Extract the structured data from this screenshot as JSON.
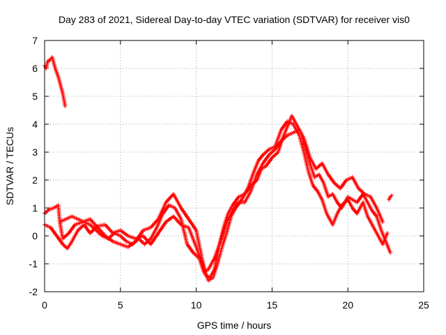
{
  "chart_data": {
    "type": "line",
    "title": "Day 283 of 2021, Sidereal Day-to-day VTEC variation (SDTVAR) for receiver vis0",
    "xlabel": "GPS time / hours",
    "ylabel": "SDTVAR / TECUs",
    "xlim": [
      0,
      25
    ],
    "ylim": [
      -2,
      7
    ],
    "xticks": [
      0,
      5,
      10,
      15,
      20,
      25
    ],
    "yticks": [
      -2,
      -1,
      0,
      1,
      2,
      3,
      4,
      5,
      6,
      7
    ],
    "grid": true,
    "marker": "+",
    "color": "#ff0000",
    "series": [
      {
        "name": "segment-early",
        "points": [
          [
            0.0,
            6.1
          ],
          [
            0.1,
            6.0
          ],
          [
            0.2,
            6.25
          ],
          [
            0.35,
            6.3
          ],
          [
            0.5,
            6.4
          ],
          [
            0.6,
            6.2
          ],
          [
            0.7,
            6.0
          ],
          [
            0.8,
            5.85
          ],
          [
            0.9,
            5.7
          ],
          [
            1.0,
            5.5
          ],
          [
            1.1,
            5.3
          ],
          [
            1.2,
            5.1
          ],
          [
            1.3,
            4.8
          ],
          [
            1.35,
            4.65
          ]
        ]
      },
      {
        "name": "track-a",
        "points": [
          [
            0.0,
            0.8
          ],
          [
            0.3,
            0.95
          ],
          [
            0.6,
            1.0
          ],
          [
            0.9,
            1.1
          ],
          [
            1.0,
            0.5
          ],
          [
            1.2,
            -0.1
          ],
          [
            1.6,
            0.1
          ],
          [
            2.0,
            0.4
          ],
          [
            2.5,
            0.5
          ],
          [
            3.0,
            0.6
          ],
          [
            3.5,
            0.3
          ],
          [
            4.0,
            0.0
          ],
          [
            4.5,
            -0.2
          ],
          [
            5.0,
            -0.3
          ],
          [
            5.5,
            -0.4
          ],
          [
            6.0,
            -0.2
          ],
          [
            6.5,
            0.2
          ],
          [
            7.0,
            0.3
          ],
          [
            7.5,
            0.6
          ],
          [
            8.0,
            1.2
          ],
          [
            8.5,
            1.5
          ],
          [
            9.0,
            1.0
          ],
          [
            9.5,
            0.6
          ],
          [
            10.0,
            0.2
          ],
          [
            10.3,
            -0.6
          ],
          [
            10.6,
            -1.4
          ],
          [
            10.9,
            -1.5
          ],
          [
            11.2,
            -1.2
          ],
          [
            11.5,
            -0.4
          ],
          [
            11.8,
            0.3
          ],
          [
            12.1,
            0.8
          ],
          [
            12.4,
            1.1
          ],
          [
            12.8,
            1.4
          ],
          [
            13.2,
            1.5
          ],
          [
            13.6,
            1.8
          ],
          [
            14.0,
            2.0
          ],
          [
            14.3,
            2.4
          ],
          [
            14.6,
            2.5
          ],
          [
            15.0,
            2.8
          ],
          [
            15.4,
            3.0
          ],
          [
            15.7,
            3.5
          ],
          [
            16.0,
            3.9
          ],
          [
            16.3,
            4.3
          ],
          [
            16.6,
            4.0
          ],
          [
            16.9,
            3.7
          ],
          [
            17.2,
            3.2
          ],
          [
            17.5,
            2.6
          ],
          [
            17.8,
            2.1
          ],
          [
            18.1,
            2.2
          ],
          [
            18.4,
            1.9
          ],
          [
            18.7,
            1.4
          ],
          [
            19.0,
            1.5
          ],
          [
            19.3,
            1.2
          ],
          [
            19.6,
            1.0
          ],
          [
            20.0,
            1.4
          ],
          [
            20.3,
            1.3
          ],
          [
            20.6,
            1.2
          ],
          [
            21.0,
            1.5
          ],
          [
            21.3,
            1.2
          ],
          [
            21.6,
            0.9
          ],
          [
            21.9,
            0.7
          ],
          [
            22.2,
            0.2
          ],
          [
            22.5,
            -0.2
          ],
          [
            22.8,
            -0.6
          ]
        ]
      },
      {
        "name": "track-b",
        "points": [
          [
            0.0,
            0.4
          ],
          [
            0.4,
            0.3
          ],
          [
            0.8,
            0.0
          ],
          [
            1.2,
            -0.3
          ],
          [
            1.5,
            -0.45
          ],
          [
            1.8,
            -0.2
          ],
          [
            2.2,
            0.2
          ],
          [
            2.6,
            0.4
          ],
          [
            3.0,
            0.1
          ],
          [
            3.5,
            0.35
          ],
          [
            4.0,
            0.4
          ],
          [
            4.5,
            0.1
          ],
          [
            5.0,
            0.2
          ],
          [
            5.5,
            0.0
          ],
          [
            6.0,
            -0.1
          ],
          [
            6.5,
            0.0
          ],
          [
            7.0,
            -0.3
          ],
          [
            7.5,
            0.1
          ],
          [
            8.0,
            0.5
          ],
          [
            8.5,
            0.7
          ],
          [
            9.0,
            0.4
          ],
          [
            9.5,
            0.3
          ],
          [
            10.0,
            -0.4
          ],
          [
            10.4,
            -1.0
          ],
          [
            10.8,
            -1.6
          ],
          [
            11.1,
            -1.5
          ],
          [
            11.4,
            -1.0
          ],
          [
            11.7,
            -0.4
          ],
          [
            12.0,
            0.1
          ],
          [
            12.3,
            0.7
          ],
          [
            12.6,
            1.0
          ],
          [
            13.0,
            1.3
          ],
          [
            13.4,
            1.7
          ],
          [
            13.8,
            2.3
          ],
          [
            14.1,
            2.7
          ],
          [
            14.4,
            2.9
          ],
          [
            14.8,
            3.1
          ],
          [
            15.2,
            3.2
          ],
          [
            15.6,
            3.8
          ],
          [
            16.0,
            4.1
          ],
          [
            16.4,
            4.0
          ],
          [
            16.8,
            3.6
          ],
          [
            17.1,
            3.0
          ],
          [
            17.4,
            2.3
          ],
          [
            17.7,
            1.8
          ],
          [
            18.0,
            1.6
          ],
          [
            18.3,
            1.3
          ],
          [
            18.6,
            0.8
          ],
          [
            19.0,
            0.4
          ],
          [
            19.3,
            0.8
          ],
          [
            19.6,
            1.1
          ],
          [
            20.0,
            1.3
          ],
          [
            20.3,
            1.0
          ],
          [
            20.6,
            0.8
          ],
          [
            21.0,
            1.2
          ],
          [
            21.3,
            0.7
          ],
          [
            21.7,
            0.3
          ],
          [
            22.0,
            0.0
          ],
          [
            22.3,
            -0.3
          ],
          [
            22.6,
            0.1
          ]
        ]
      },
      {
        "name": "track-c",
        "points": [
          [
            1.0,
            0.5
          ],
          [
            1.4,
            0.6
          ],
          [
            1.8,
            0.7
          ],
          [
            2.2,
            0.6
          ],
          [
            2.6,
            0.5
          ],
          [
            3.0,
            0.4
          ],
          [
            3.4,
            0.2
          ],
          [
            3.8,
            0.0
          ],
          [
            4.2,
            -0.1
          ],
          [
            4.6,
            0.1
          ],
          [
            5.0,
            0.0
          ],
          [
            5.4,
            -0.2
          ],
          [
            5.8,
            -0.3
          ],
          [
            6.2,
            -0.1
          ],
          [
            6.6,
            -0.3
          ],
          [
            7.0,
            -0.1
          ],
          [
            7.4,
            0.3
          ],
          [
            7.8,
            0.8
          ],
          [
            8.2,
            1.1
          ],
          [
            8.6,
            1.0
          ],
          [
            9.0,
            0.6
          ],
          [
            9.4,
            -0.3
          ],
          [
            9.8,
            -0.6
          ],
          [
            10.2,
            -0.8
          ],
          [
            10.5,
            -1.3
          ],
          [
            10.8,
            -1.2
          ],
          [
            11.2,
            -0.8
          ],
          [
            11.6,
            -0.2
          ],
          [
            12.0,
            0.5
          ],
          [
            12.4,
            0.9
          ],
          [
            12.8,
            1.2
          ],
          [
            13.2,
            1.2
          ],
          [
            13.6,
            1.6
          ],
          [
            14.0,
            2.2
          ],
          [
            14.4,
            2.6
          ],
          [
            14.8,
            2.9
          ],
          [
            15.2,
            3.1
          ],
          [
            15.6,
            3.4
          ],
          [
            16.0,
            3.6
          ],
          [
            16.4,
            3.7
          ],
          [
            16.8,
            3.8
          ],
          [
            17.1,
            3.5
          ],
          [
            17.5,
            2.8
          ],
          [
            17.9,
            2.4
          ],
          [
            18.3,
            2.6
          ],
          [
            18.7,
            2.2
          ],
          [
            19.1,
            1.9
          ],
          [
            19.5,
            1.7
          ],
          [
            19.9,
            2.0
          ],
          [
            20.3,
            2.1
          ],
          [
            20.7,
            1.7
          ],
          [
            21.1,
            1.5
          ],
          [
            21.5,
            1.4
          ],
          [
            21.9,
            1.0
          ],
          [
            22.3,
            0.5
          ]
        ]
      },
      {
        "name": "segment-late",
        "points": [
          [
            22.7,
            1.3
          ],
          [
            22.8,
            1.4
          ],
          [
            22.9,
            1.45
          ]
        ]
      }
    ]
  }
}
